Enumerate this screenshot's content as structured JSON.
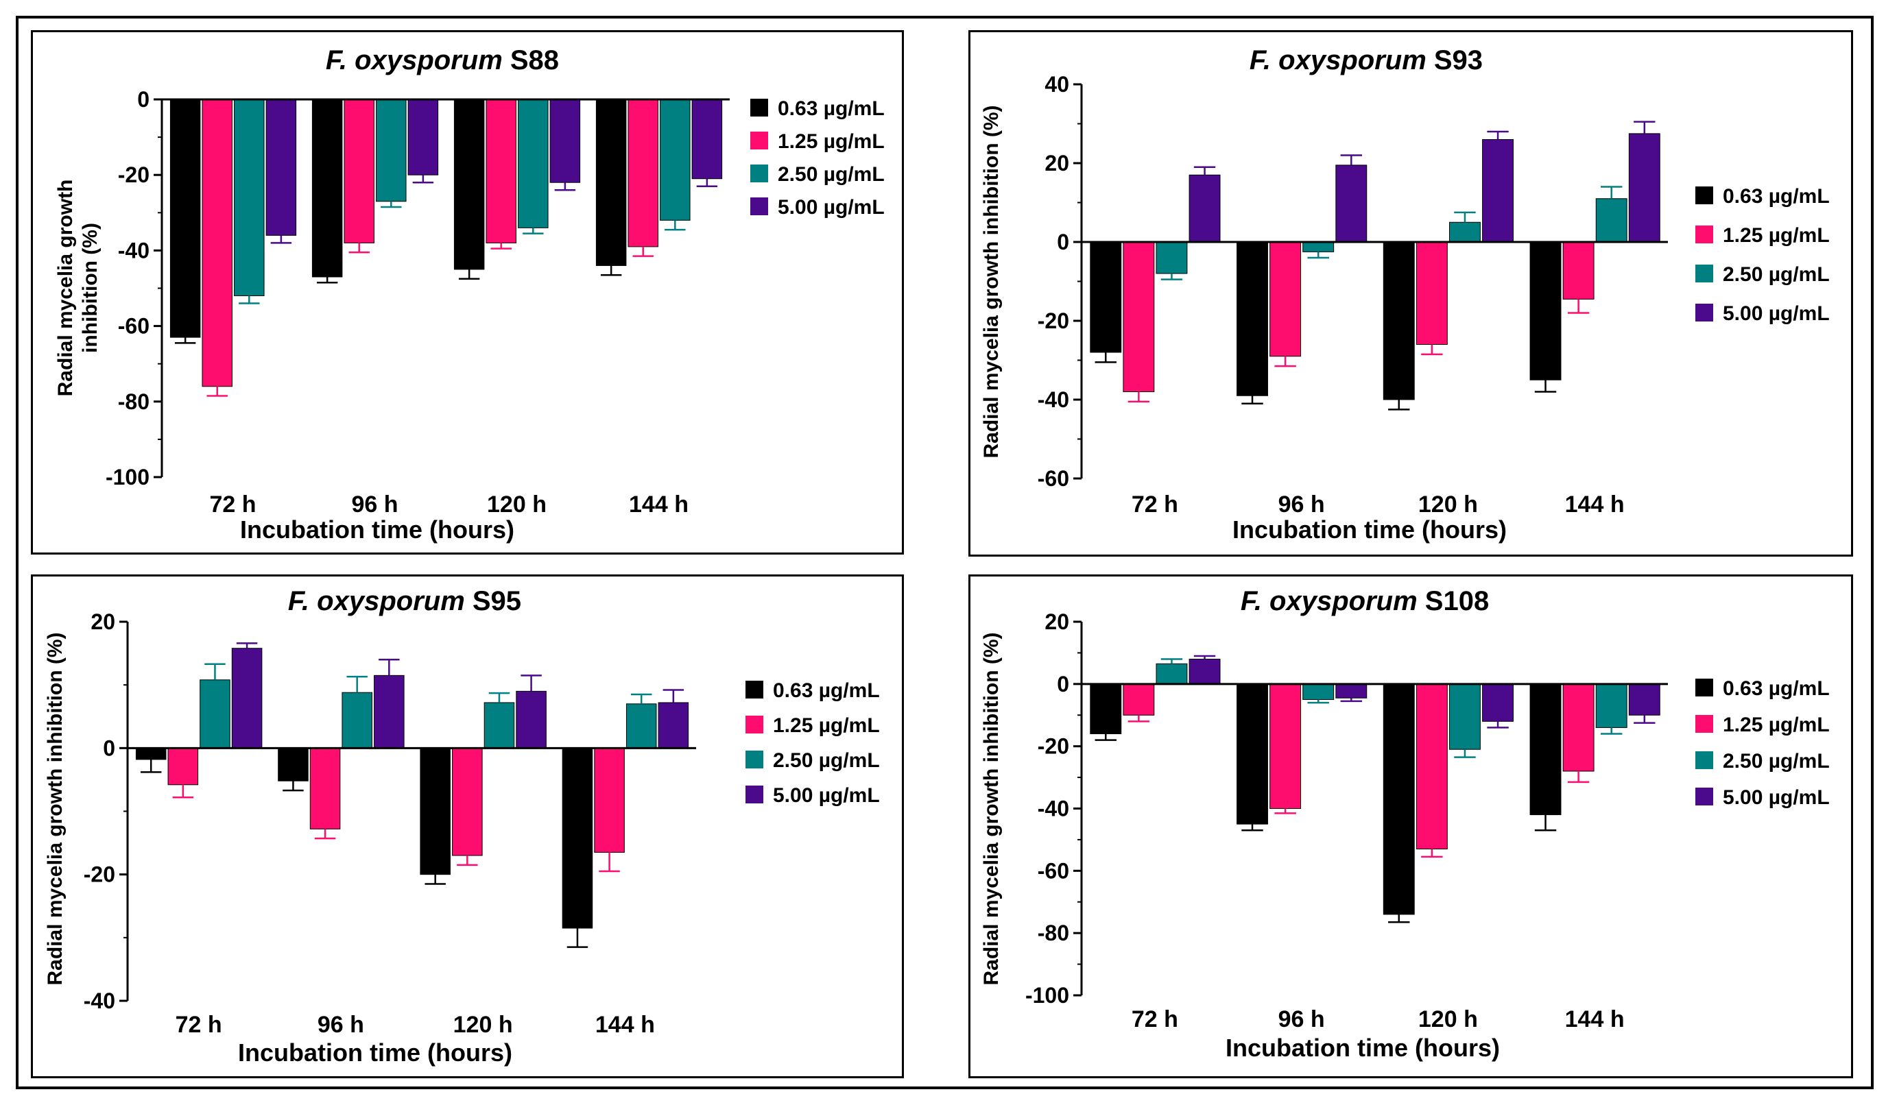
{
  "legend": [
    "0.63 µg/mL",
    "1.25 µg/mL",
    "2.50 µg/mL",
    "5.00 µg/mL"
  ],
  "colors": [
    "#000000",
    "#ff0d6e",
    "#008080",
    "#4b0a8c"
  ],
  "chart_data": [
    {
      "type": "bar",
      "title_italic": "F. oxysporum",
      "title_rest": " S88",
      "categories": [
        "72 h",
        "96 h",
        "120 h",
        "144 h"
      ],
      "xlabel": "Incubation time (hours)",
      "ylabel": [
        "Radial mycelia growth",
        "inhibition (%)"
      ],
      "ylim": [
        -100,
        0
      ],
      "yticks": [
        -100,
        -80,
        -60,
        -40,
        -20,
        0
      ],
      "series": [
        {
          "name": "0.63 µg/mL",
          "values": [
            -63,
            -47,
            -45,
            -44
          ],
          "errors": [
            1.5,
            1.5,
            2.5,
            2.5
          ]
        },
        {
          "name": "1.25 µg/mL",
          "values": [
            -76,
            -38,
            -38,
            -39
          ],
          "errors": [
            2.5,
            2.5,
            1.5,
            2.5
          ]
        },
        {
          "name": "2.50 µg/mL",
          "values": [
            -52,
            -27,
            -34,
            -32
          ],
          "errors": [
            2,
            1.5,
            1.5,
            2.5
          ]
        },
        {
          "name": "5.00 µg/mL",
          "values": [
            -36,
            -20,
            -22,
            -21
          ],
          "errors": [
            2,
            2,
            2,
            2
          ]
        }
      ]
    },
    {
      "type": "bar",
      "title_italic": "F. oxysporum",
      "title_rest": " S93",
      "categories": [
        "72 h",
        "96 h",
        "120 h",
        "144 h"
      ],
      "xlabel": "Incubation time (hours)",
      "ylabel": [
        "Radial mycelia growth inhibition (%)"
      ],
      "ylim": [
        -60,
        40
      ],
      "yticks": [
        -60,
        -40,
        -20,
        0,
        20,
        40
      ],
      "series": [
        {
          "name": "0.63 µg/mL",
          "values": [
            -28,
            -39,
            -40,
            -35
          ],
          "errors": [
            2.5,
            2,
            2.5,
            3
          ]
        },
        {
          "name": "1.25 µg/mL",
          "values": [
            -38,
            -29,
            -26,
            -14.5
          ],
          "errors": [
            2.5,
            2.5,
            2.5,
            3.5
          ]
        },
        {
          "name": "2.50 µg/mL",
          "values": [
            -8,
            -2.5,
            5,
            11
          ],
          "errors": [
            1.5,
            1.5,
            2.5,
            3
          ]
        },
        {
          "name": "5.00 µg/mL",
          "values": [
            17,
            19.5,
            26,
            27.5
          ],
          "errors": [
            2,
            2.5,
            2,
            3
          ]
        }
      ]
    },
    {
      "type": "bar",
      "title_italic": "F. oxysporum",
      "title_rest": " S95",
      "categories": [
        "72 h",
        "96 h",
        "120 h",
        "144 h"
      ],
      "xlabel": "Incubation time (hours)",
      "ylabel": [
        "Radial mycelia growth inhibition (%)"
      ],
      "ylim": [
        -40,
        20
      ],
      "yticks": [
        -40,
        -20,
        0,
        20
      ],
      "series": [
        {
          "name": "0.63 µg/mL",
          "values": [
            -1.8,
            -5.2,
            -20,
            -28.5
          ],
          "errors": [
            2,
            1.5,
            1.5,
            3
          ]
        },
        {
          "name": "1.25 µg/mL",
          "values": [
            -5.8,
            -12.8,
            -17,
            -16.5
          ],
          "errors": [
            2,
            1.5,
            1.5,
            3
          ]
        },
        {
          "name": "2.50 µg/mL",
          "values": [
            10.8,
            8.8,
            7.2,
            7
          ],
          "errors": [
            2.5,
            2.5,
            1.5,
            1.5
          ]
        },
        {
          "name": "5.00 µg/mL",
          "values": [
            15.8,
            11.5,
            9,
            7.2
          ],
          "errors": [
            0.8,
            2.5,
            2.5,
            2
          ]
        }
      ]
    },
    {
      "type": "bar",
      "title_italic": "F. oxysporum",
      "title_rest": " S108",
      "categories": [
        "72 h",
        "96 h",
        "120 h",
        "144 h"
      ],
      "xlabel": "Incubation time (hours)",
      "ylabel": [
        "Radial mycelia growth inhibition (%)"
      ],
      "ylim": [
        -100,
        20
      ],
      "yticks": [
        -100,
        -80,
        -60,
        -40,
        -20,
        0,
        20
      ],
      "series": [
        {
          "name": "0.63 µg/mL",
          "values": [
            -16,
            -45,
            -74,
            -42
          ],
          "errors": [
            2,
            2,
            2.5,
            5
          ]
        },
        {
          "name": "1.25 µg/mL",
          "values": [
            -10,
            -40,
            -53,
            -28
          ],
          "errors": [
            2,
            1.5,
            2.5,
            3.5
          ]
        },
        {
          "name": "2.50 µg/mL",
          "values": [
            6.5,
            -5,
            -21,
            -14
          ],
          "errors": [
            1.5,
            1,
            2.5,
            2
          ]
        },
        {
          "name": "5.00 µg/mL",
          "values": [
            8,
            -4.5,
            -12,
            -10
          ],
          "errors": [
            1,
            1,
            2,
            2.5
          ]
        }
      ]
    }
  ]
}
